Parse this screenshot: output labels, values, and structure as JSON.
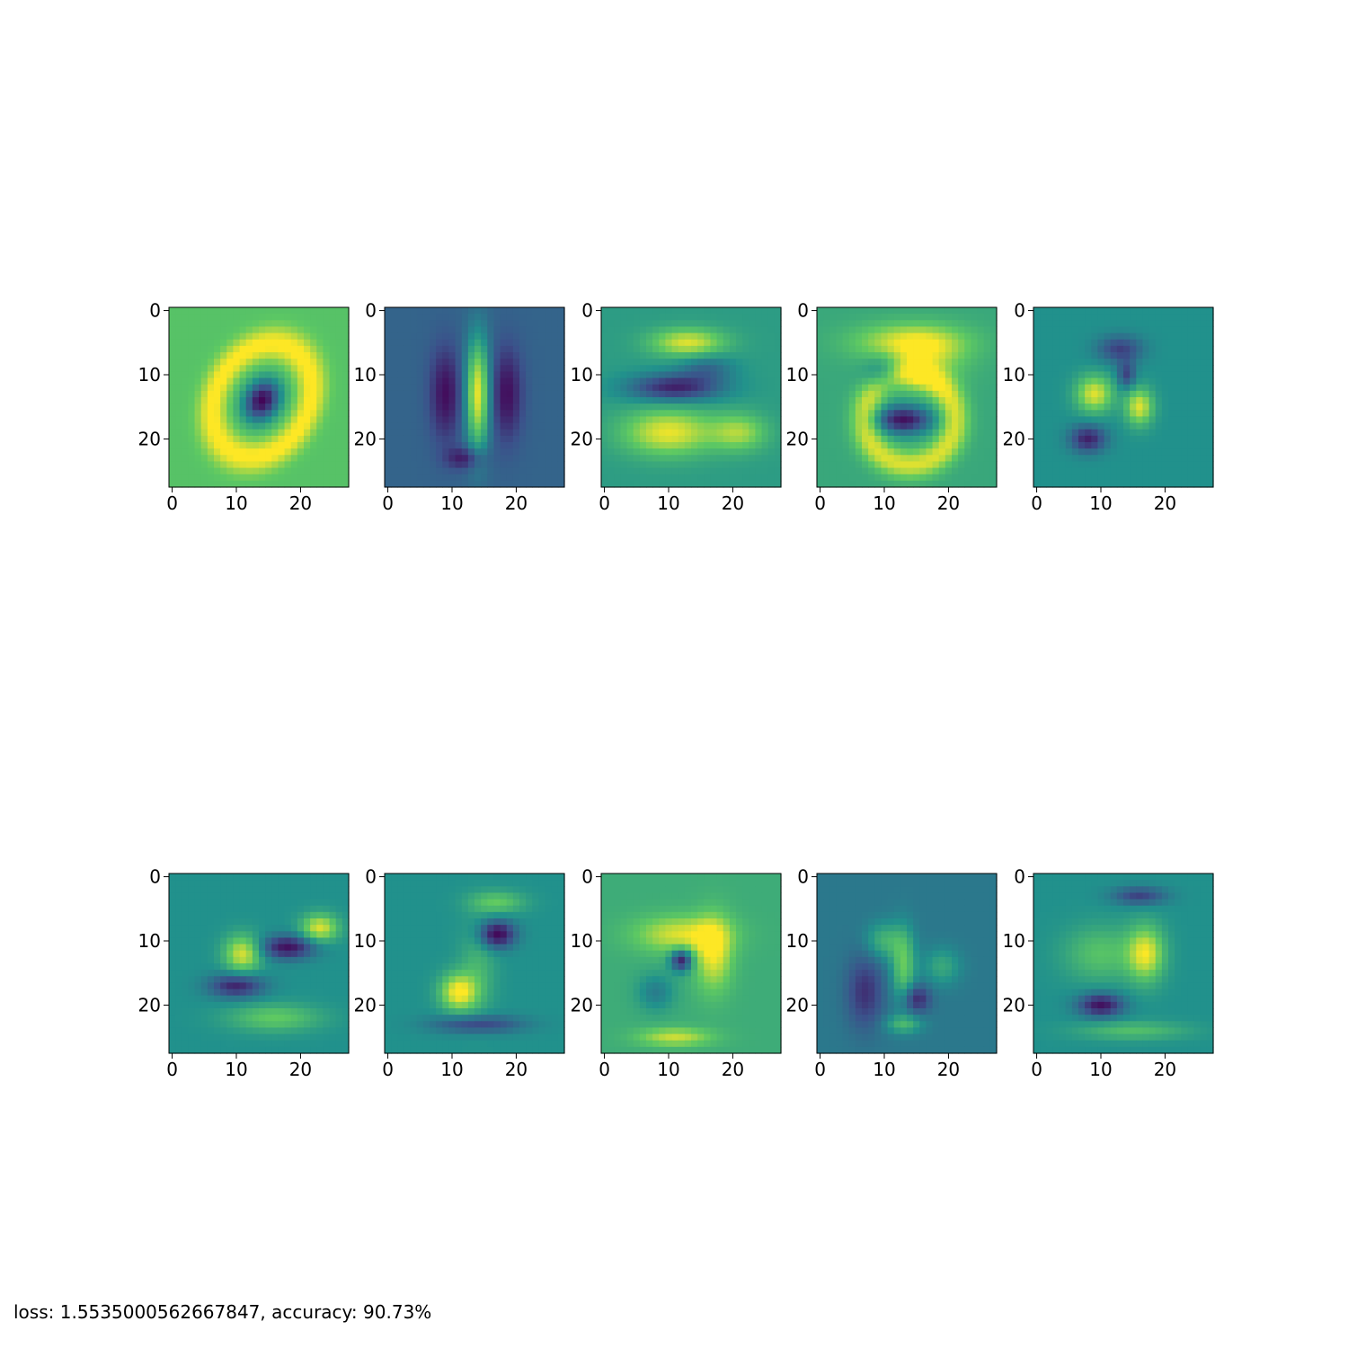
{
  "chart_data": {
    "type": "heatmap",
    "colormap": "viridis",
    "grid": false,
    "image_size": [
      28,
      28
    ],
    "x_tick_labels": [
      "0",
      "10",
      "20"
    ],
    "y_tick_labels": [
      "0",
      "10",
      "20"
    ],
    "panels": [
      {
        "pattern": "ring"
      },
      {
        "pattern": "bar"
      },
      {
        "pattern": "twobands"
      },
      {
        "pattern": "three"
      },
      {
        "pattern": "scatter"
      },
      {
        "pattern": "five"
      },
      {
        "pattern": "six"
      },
      {
        "pattern": "seven"
      },
      {
        "pattern": "eight"
      },
      {
        "pattern": "nine"
      }
    ]
  },
  "footer": {
    "loss_label": "loss:",
    "loss_value": "1.5535000562667847",
    "accuracy_label": "accuracy:",
    "accuracy_value": "90.73%"
  }
}
